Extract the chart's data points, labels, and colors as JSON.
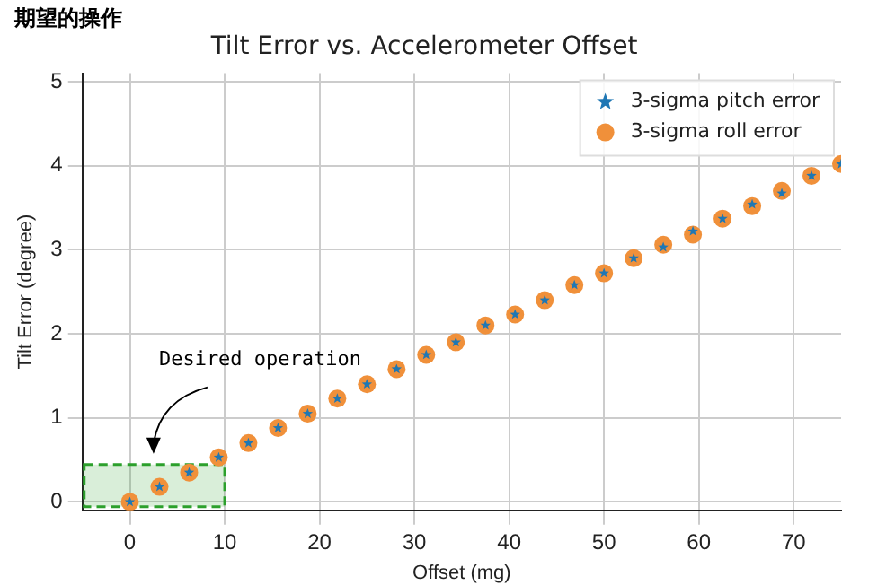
{
  "chart_data": {
    "type": "scatter",
    "title": "Tilt Error vs. Accelerometer Offset",
    "xlabel": "Offset (mg)",
    "ylabel": "Tilt Error (degree)",
    "annotations": [
      "期望的操作",
      "Desired operation"
    ],
    "x": [
      0,
      3.125,
      6.25,
      9.375,
      12.5,
      15.625,
      18.75,
      21.875,
      25,
      28.125,
      31.25,
      34.375,
      37.5,
      40.625,
      43.75,
      46.875,
      50,
      53.125,
      56.25,
      59.375,
      62.5,
      65.625,
      68.75,
      71.875,
      75
    ],
    "series": [
      {
        "name": "3-sigma pitch error",
        "color": "#1f77b4",
        "marker": "star",
        "values": [
          0,
          0.18,
          0.35,
          0.53,
          0.7,
          0.88,
          1.05,
          1.23,
          1.4,
          1.58,
          1.75,
          1.9,
          2.1,
          2.23,
          2.4,
          2.58,
          2.72,
          2.9,
          3.03,
          3.22,
          3.37,
          3.54,
          3.67,
          3.88,
          4.02
        ]
      },
      {
        "name": "3-sigma roll error",
        "color": "#f0903a",
        "marker": "circle",
        "values": [
          0,
          0.18,
          0.35,
          0.53,
          0.7,
          0.88,
          1.05,
          1.23,
          1.4,
          1.58,
          1.75,
          1.9,
          2.1,
          2.23,
          2.4,
          2.58,
          2.72,
          2.9,
          3.06,
          3.18,
          3.37,
          3.52,
          3.7,
          3.88,
          4.02
        ]
      }
    ],
    "xlim": [
      -5,
      75
    ],
    "ylim": [
      -0.1,
      5.1
    ],
    "xticks": [
      0,
      10,
      20,
      30,
      40,
      50,
      60,
      70
    ],
    "yticks": [
      0,
      1,
      2,
      3,
      4,
      5
    ],
    "bands": [
      {
        "axis": "x",
        "from": -5,
        "to": 10,
        "color": "#2ca02c"
      }
    ],
    "grid": true,
    "legend": "top right"
  }
}
